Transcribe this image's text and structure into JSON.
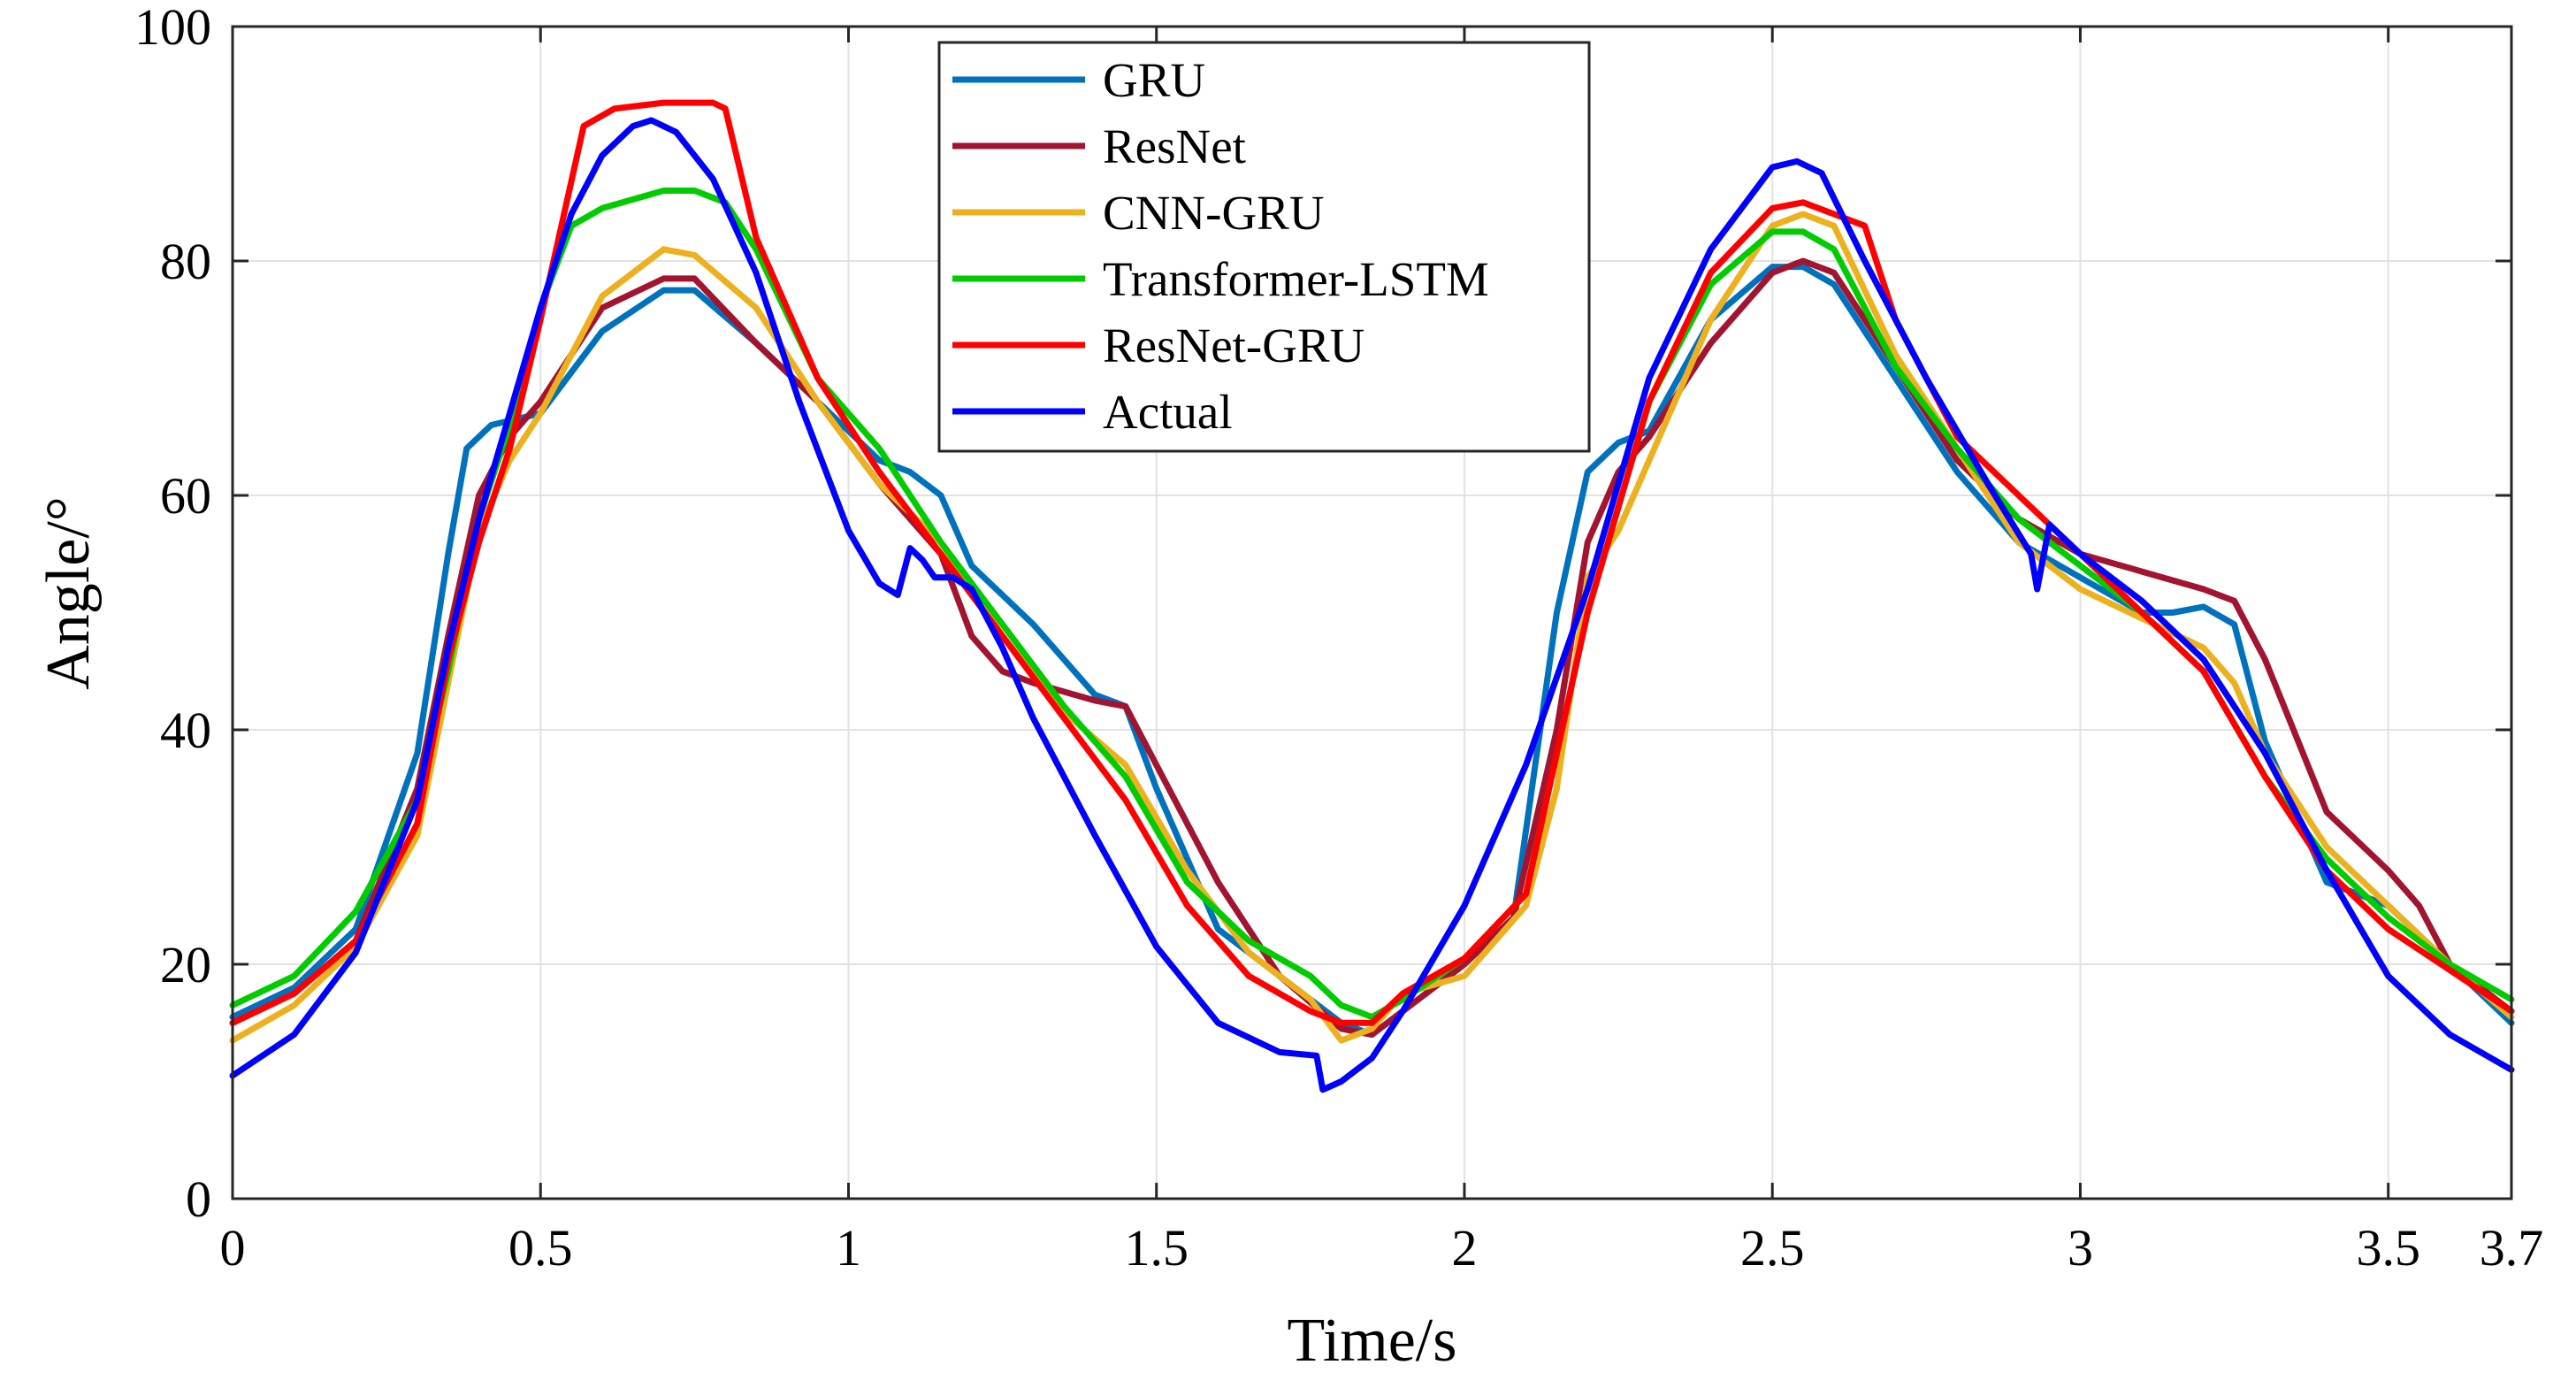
{
  "chart_data": {
    "type": "line",
    "title": "",
    "xlabel": "Time/s",
    "ylabel": "Angle/°",
    "xlim": [
      0,
      3.7
    ],
    "ylim": [
      0,
      100
    ],
    "xticks": [
      0,
      0.5,
      1,
      1.5,
      2,
      2.5,
      3,
      3.5,
      3.7
    ],
    "xtick_labels": [
      "0",
      "0.5",
      "1",
      "1.5",
      "2",
      "2.5",
      "3",
      "3.5",
      "3.7"
    ],
    "yticks": [
      0,
      20,
      40,
      60,
      80,
      100
    ],
    "ytick_labels": [
      "0",
      "20",
      "40",
      "60",
      "80",
      "100"
    ],
    "grid": true,
    "legend_position": "top-center",
    "series": [
      {
        "name": "GRU",
        "color": "#0072BD",
        "x": [
          0,
          0.1,
          0.2,
          0.3,
          0.35,
          0.38,
          0.42,
          0.5,
          0.6,
          0.7,
          0.75,
          0.85,
          0.95,
          1.05,
          1.1,
          1.15,
          1.2,
          1.3,
          1.4,
          1.45,
          1.5,
          1.6,
          1.7,
          1.8,
          1.85,
          1.9,
          2.0,
          2.08,
          2.15,
          2.2,
          2.25,
          2.3,
          2.4,
          2.5,
          2.55,
          2.6,
          2.7,
          2.8,
          2.9,
          3.0,
          3.1,
          3.15,
          3.2,
          3.25,
          3.3,
          3.4,
          3.5,
          3.6,
          3.7
        ],
        "y": [
          15.5,
          18,
          23,
          38,
          55,
          64,
          66,
          67,
          74,
          77.5,
          77.5,
          73,
          68,
          63,
          62,
          60,
          54,
          49,
          43,
          42,
          35,
          23,
          19,
          15,
          14,
          16,
          20,
          24,
          50,
          62,
          64.5,
          65.5,
          75,
          79.5,
          79.5,
          78,
          70,
          62,
          56,
          53,
          50,
          50,
          50.5,
          49,
          39,
          27,
          25,
          20,
          15
        ]
      },
      {
        "name": "ResNet",
        "color": "#A2142F",
        "x": [
          0,
          0.1,
          0.2,
          0.3,
          0.35,
          0.4,
          0.45,
          0.5,
          0.6,
          0.7,
          0.75,
          0.85,
          0.95,
          1.05,
          1.15,
          1.2,
          1.25,
          1.3,
          1.4,
          1.45,
          1.5,
          1.6,
          1.7,
          1.8,
          1.85,
          1.9,
          2.0,
          2.08,
          2.15,
          2.2,
          2.25,
          2.3,
          2.4,
          2.5,
          2.55,
          2.6,
          2.7,
          2.8,
          2.9,
          3.0,
          3.1,
          3.2,
          3.25,
          3.3,
          3.4,
          3.5,
          3.55,
          3.6,
          3.7
        ],
        "y": [
          15,
          17.5,
          22,
          35,
          48,
          60,
          65,
          68,
          76,
          78.5,
          78.5,
          73,
          68,
          61,
          55,
          48,
          45,
          44,
          42.5,
          42,
          37,
          27,
          19,
          14.5,
          14,
          16,
          20,
          24,
          40,
          56,
          62,
          65,
          73,
          79,
          80,
          79,
          71,
          63,
          58,
          55,
          53.5,
          52,
          51,
          46,
          33,
          28,
          25,
          20,
          16
        ]
      },
      {
        "name": "CNN-GRU",
        "color": "#EDB120",
        "x": [
          0,
          0.1,
          0.2,
          0.3,
          0.35,
          0.4,
          0.45,
          0.5,
          0.6,
          0.7,
          0.75,
          0.85,
          0.95,
          1.05,
          1.15,
          1.25,
          1.35,
          1.45,
          1.55,
          1.65,
          1.75,
          1.8,
          1.85,
          1.9,
          2.0,
          2.1,
          2.15,
          2.2,
          2.25,
          2.3,
          2.4,
          2.5,
          2.55,
          2.6,
          2.7,
          2.8,
          2.9,
          3.0,
          3.1,
          3.2,
          3.25,
          3.3,
          3.4,
          3.5,
          3.6,
          3.7
        ],
        "y": [
          13.5,
          16.5,
          21.5,
          31,
          44,
          57,
          63,
          67,
          77,
          81,
          80.5,
          76,
          68,
          61,
          56,
          48,
          41.5,
          37,
          28,
          21,
          17,
          13.5,
          14.5,
          17.5,
          19,
          25,
          35,
          53,
          57,
          63,
          75,
          83,
          84,
          83,
          72,
          64,
          56,
          52,
          49.5,
          47,
          44,
          38,
          30,
          25,
          20,
          15.5
        ]
      },
      {
        "name": "Transformer-LSTM",
        "color": "#00CC00",
        "x": [
          0,
          0.1,
          0.2,
          0.3,
          0.35,
          0.4,
          0.45,
          0.5,
          0.55,
          0.6,
          0.7,
          0.75,
          0.8,
          0.85,
          0.95,
          1.05,
          1.15,
          1.25,
          1.35,
          1.45,
          1.55,
          1.65,
          1.75,
          1.8,
          1.85,
          1.9,
          2.0,
          2.1,
          2.2,
          2.3,
          2.4,
          2.5,
          2.55,
          2.6,
          2.7,
          2.8,
          2.9,
          3.0,
          3.1,
          3.2,
          3.3,
          3.4,
          3.5,
          3.6,
          3.7
        ],
        "y": [
          16.5,
          19,
          24.5,
          34,
          45,
          58,
          66,
          76,
          83,
          84.5,
          86,
          86,
          85,
          81,
          70,
          64,
          56,
          49,
          42,
          36,
          27,
          22,
          19,
          16.5,
          15.5,
          17,
          20.5,
          26,
          50,
          68,
          78,
          82.5,
          82.5,
          81,
          71,
          64,
          58,
          54,
          50,
          45,
          36,
          29,
          24,
          20,
          17
        ]
      },
      {
        "name": "ResNet-GRU",
        "color": "#FF0000",
        "x": [
          0,
          0.1,
          0.2,
          0.3,
          0.35,
          0.4,
          0.45,
          0.5,
          0.57,
          0.62,
          0.7,
          0.75,
          0.78,
          0.8,
          0.85,
          0.95,
          1.05,
          1.15,
          1.25,
          1.35,
          1.45,
          1.55,
          1.65,
          1.75,
          1.8,
          1.85,
          1.9,
          2.0,
          2.1,
          2.2,
          2.3,
          2.4,
          2.5,
          2.55,
          2.6,
          2.65,
          2.7,
          2.8,
          2.9,
          3.0,
          3.1,
          3.2,
          3.3,
          3.4,
          3.5,
          3.6,
          3.7
        ],
        "y": [
          15,
          17.5,
          22,
          32,
          46,
          56,
          64,
          75,
          91.5,
          93,
          93.5,
          93.5,
          93.5,
          93,
          82,
          70,
          62,
          55,
          48,
          41,
          34,
          25,
          19,
          16,
          15,
          15,
          17.5,
          20.5,
          26,
          50,
          68,
          79,
          84.5,
          85,
          84,
          83,
          75,
          65,
          60,
          55,
          50,
          45,
          36,
          28,
          23,
          19.5,
          16
        ]
      },
      {
        "name": "Actual",
        "color": "#0000FF",
        "x": [
          0,
          0.1,
          0.2,
          0.3,
          0.35,
          0.4,
          0.45,
          0.5,
          0.55,
          0.6,
          0.65,
          0.68,
          0.72,
          0.78,
          0.85,
          0.92,
          1.0,
          1.05,
          1.08,
          1.1,
          1.12,
          1.14,
          1.15,
          1.17,
          1.2,
          1.25,
          1.3,
          1.4,
          1.5,
          1.6,
          1.7,
          1.76,
          1.77,
          1.8,
          1.85,
          1.9,
          2.0,
          2.1,
          2.2,
          2.3,
          2.4,
          2.5,
          2.54,
          2.58,
          2.65,
          2.75,
          2.85,
          2.92,
          2.93,
          2.95,
          3.0,
          3.1,
          3.2,
          3.3,
          3.4,
          3.5,
          3.6,
          3.7
        ],
        "y": [
          10.5,
          14,
          21,
          34,
          47,
          58,
          67,
          76,
          84,
          89,
          91.5,
          92,
          91,
          87,
          79,
          68,
          57,
          52.5,
          51.5,
          55.5,
          54.5,
          53,
          53,
          53,
          52,
          47,
          41,
          31,
          21.5,
          15,
          12.5,
          12.2,
          9.3,
          10,
          12,
          16,
          25,
          37,
          52,
          70,
          81,
          88,
          88.5,
          87.5,
          80,
          70,
          61,
          55,
          52,
          57.5,
          55,
          51,
          46,
          38,
          28,
          19,
          14,
          11
        ]
      }
    ]
  }
}
